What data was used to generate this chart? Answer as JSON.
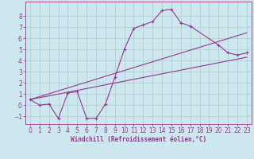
{
  "background_color": "#cce8ee",
  "grid_color": "#aacccc",
  "line_color": "#993399",
  "spine_color": "#7a4f7a",
  "xlim": [
    -0.5,
    23.5
  ],
  "ylim": [
    -1.7,
    9.3
  ],
  "xticks": [
    0,
    1,
    2,
    3,
    4,
    5,
    6,
    7,
    8,
    9,
    10,
    11,
    12,
    13,
    14,
    15,
    16,
    17,
    18,
    19,
    20,
    21,
    22,
    23
  ],
  "yticks": [
    -1,
    0,
    1,
    2,
    3,
    4,
    5,
    6,
    7,
    8
  ],
  "xlabel": "Windchill (Refroidissement éolien,°C)",
  "main_x": [
    0,
    1,
    2,
    3,
    4,
    5,
    6,
    7,
    8,
    9,
    10,
    11,
    12,
    13,
    14,
    15,
    16,
    17,
    20,
    21,
    22,
    23
  ],
  "main_y": [
    0.5,
    0.0,
    0.1,
    -1.2,
    1.1,
    1.2,
    -1.2,
    -1.2,
    0.1,
    2.5,
    5.0,
    6.9,
    7.2,
    7.5,
    8.5,
    8.6,
    7.4,
    7.1,
    5.4,
    4.7,
    4.5,
    4.7
  ],
  "low_line_x": [
    0,
    23
  ],
  "low_line_y": [
    0.5,
    4.3
  ],
  "high_line_x": [
    0,
    23
  ],
  "high_line_y": [
    0.5,
    6.5
  ],
  "mid_line_x": [
    0,
    20
  ],
  "mid_line_y": [
    0.5,
    5.4
  ],
  "tick_fontsize": 5.5,
  "label_fontsize": 5.5
}
